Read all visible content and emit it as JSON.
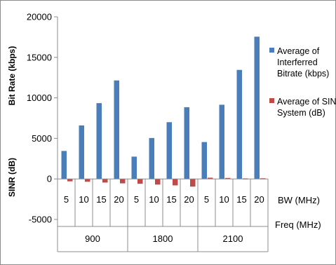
{
  "chart_data": {
    "type": "bar",
    "title": "",
    "y_axis_labels": [
      "Bit Rate (kbps)",
      "SINR (dB)"
    ],
    "ylim": [
      -5000,
      20000
    ],
    "yticks": [
      -5000,
      0,
      5000,
      10000,
      15000,
      20000
    ],
    "grid": false,
    "legend_position": "right",
    "category_levels": [
      {
        "name": "BW (MHz)",
        "labels": [
          "5",
          "10",
          "15",
          "20"
        ]
      },
      {
        "name": "Freq (MHz)",
        "labels": [
          "900",
          "1800",
          "2100"
        ]
      }
    ],
    "categories": [
      "900 / 5",
      "900 / 10",
      "900 / 15",
      "900 / 20",
      "1800 / 5",
      "1800 / 10",
      "1800 / 15",
      "1800 / 20",
      "2100 / 5",
      "2100 / 10",
      "2100 / 15",
      "2100 / 20"
    ],
    "series": [
      {
        "name": "Average of Interferred Bitrate (kbps)",
        "legend_lines": [
          "Average of",
          "Interferred",
          "Bitrate (kbps)"
        ],
        "color": "#4a7ebb",
        "values": [
          3450,
          6600,
          9350,
          12150,
          2750,
          5050,
          7000,
          8850,
          4550,
          9150,
          13450,
          17550
        ]
      },
      {
        "name": "Average of SINR System (dB)",
        "legend_lines": [
          "Average of SINR",
          "System (dB)"
        ],
        "color": "#be4b48",
        "values": [
          -300,
          -350,
          -450,
          -550,
          -600,
          -700,
          -800,
          -950,
          150,
          120,
          60,
          80
        ]
      }
    ]
  }
}
